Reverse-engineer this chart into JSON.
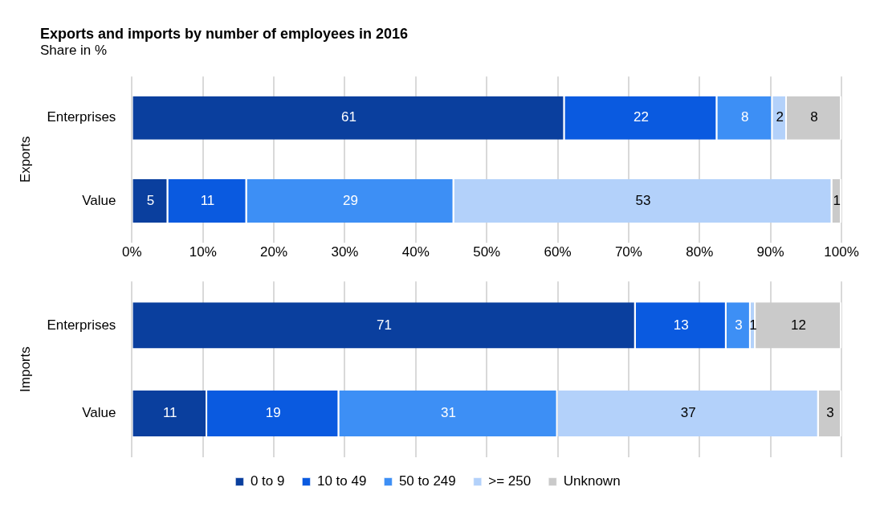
{
  "chart_data": [
    {
      "type": "bar",
      "title": "Exports and imports by number of employees in 2016",
      "subtitle": "Share in %",
      "ylabel": "Exports",
      "orientation": "horizontal",
      "stacked": true,
      "categories": [
        "Enterprises",
        "Value"
      ],
      "xlim": [
        0,
        100
      ],
      "xticks": [
        {
          "value": 0,
          "label": "0%"
        },
        {
          "value": 10,
          "label": "10%"
        },
        {
          "value": 20,
          "label": "20%"
        },
        {
          "value": 30,
          "label": "30%"
        },
        {
          "value": 40,
          "label": "40%"
        },
        {
          "value": 50,
          "label": "50%"
        },
        {
          "value": 60,
          "label": "60%"
        },
        {
          "value": 70,
          "label": "70%"
        },
        {
          "value": 80,
          "label": "80%"
        },
        {
          "value": 90,
          "label": "90%"
        },
        {
          "value": 100,
          "label": "100%"
        }
      ],
      "grid": "x",
      "series": [
        {
          "color": "#0a3f9e",
          "values": [
            61,
            5.1
          ],
          "value_labels": [
            "61",
            "5"
          ]
        },
        {
          "color": "#0a5ae0",
          "values": [
            21.5,
            11.1
          ],
          "value_labels": [
            "22",
            "11"
          ]
        },
        {
          "color": "#3d8ff5",
          "values": [
            7.8,
            29.2
          ],
          "value_labels": [
            "8",
            "29"
          ]
        },
        {
          "color": "#b3d1fa",
          "values": [
            2,
            53.3
          ],
          "value_labels": [
            "2",
            "53"
          ]
        },
        {
          "color": "#cacaca",
          "values": [
            7.7,
            1.3
          ],
          "value_labels": [
            "8",
            "1"
          ]
        }
      ]
    },
    {
      "type": "bar",
      "ylabel": "Imports",
      "orientation": "horizontal",
      "stacked": true,
      "categories": [
        "Enterprises",
        "Value"
      ],
      "xlim": [
        0,
        100
      ],
      "xticks": [
        {
          "value": 0,
          "label": null
        },
        {
          "value": 10,
          "label": null
        },
        {
          "value": 20,
          "label": null
        },
        {
          "value": 30,
          "label": null
        },
        {
          "value": 40,
          "label": null
        },
        {
          "value": 50,
          "label": null
        },
        {
          "value": 60,
          "label": null
        },
        {
          "value": 70,
          "label": null
        },
        {
          "value": 80,
          "label": null
        },
        {
          "value": 90,
          "label": null
        },
        {
          "value": 100,
          "label": null
        }
      ],
      "tick_labels": "y",
      "grid": "x",
      "legend": "bottom",
      "series": [
        {
          "name": "0 to 9",
          "color": "#0a3f9e",
          "values": [
            71,
            10.6
          ],
          "value_labels": [
            "71",
            "11"
          ]
        },
        {
          "name": "10 to 49",
          "color": "#0a5ae0",
          "values": [
            12.8,
            18.6
          ],
          "value_labels": [
            "13",
            "19"
          ]
        },
        {
          "name": "50 to 249",
          "color": "#3d8ff5",
          "values": [
            3.4,
            30.8
          ],
          "value_labels": [
            "3",
            "31"
          ]
        },
        {
          "name": ">= 250",
          "color": "#b3d1fa",
          "values": [
            0.7,
            36.8
          ],
          "value_labels": [
            "1",
            "37"
          ]
        },
        {
          "name": "Unknown",
          "color": "#cacaca",
          "values": [
            12.1,
            3.2
          ],
          "value_labels": [
            "12",
            "3"
          ]
        }
      ]
    }
  ]
}
